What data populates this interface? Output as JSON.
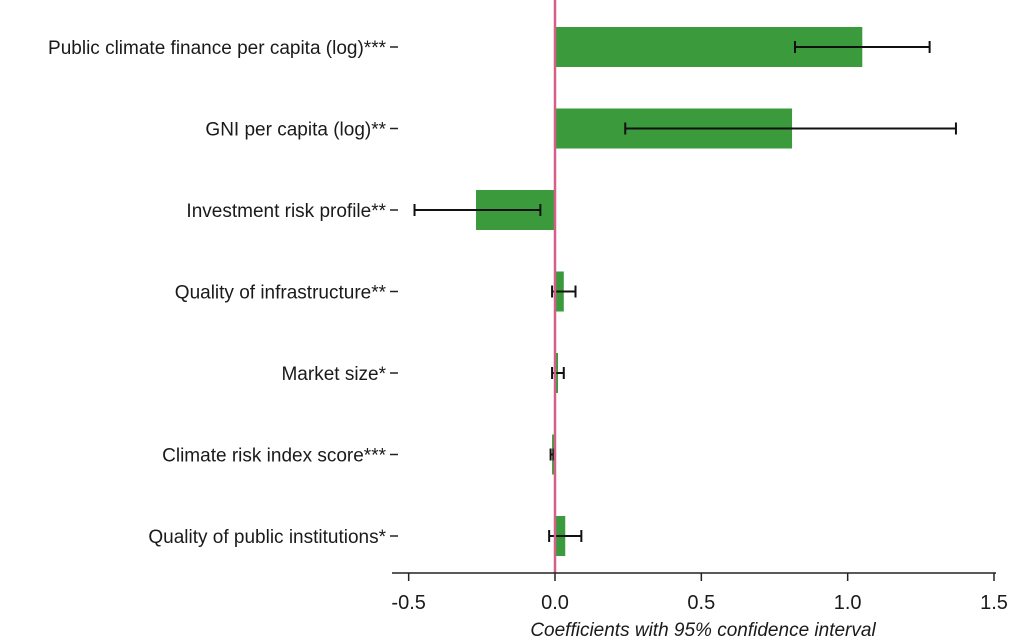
{
  "chart_data": {
    "type": "bar",
    "orientation": "horizontal",
    "categories": [
      "Public climate finance per capita (log)***",
      "GNI per capita (log)**",
      "Investment risk profile**",
      "Quality of infrastructure**",
      "Market size*",
      "Climate risk index score***",
      "Quality of public institutions*"
    ],
    "values": [
      1.05,
      0.81,
      -0.27,
      0.03,
      0.01,
      -0.01,
      0.035
    ],
    "ci_low": [
      0.82,
      0.24,
      -0.48,
      -0.01,
      -0.01,
      -0.015,
      -0.02
    ],
    "ci_high": [
      1.28,
      1.37,
      -0.05,
      0.07,
      0.03,
      -0.005,
      0.09
    ],
    "xlabel": "Coefficients with 95% confidence interval",
    "xlim": [
      -0.55,
      1.5
    ],
    "xticks": [
      -0.5,
      0.0,
      0.5,
      1.0,
      1.5
    ],
    "xtick_labels": [
      "-0.5",
      "0.0",
      "0.5",
      "1.0",
      "1.5"
    ],
    "grid": false,
    "colors": {
      "bar": "#3a9a3c",
      "error_bar": "#111111",
      "zero_line": "#d4608a",
      "axis": "#222222"
    }
  }
}
